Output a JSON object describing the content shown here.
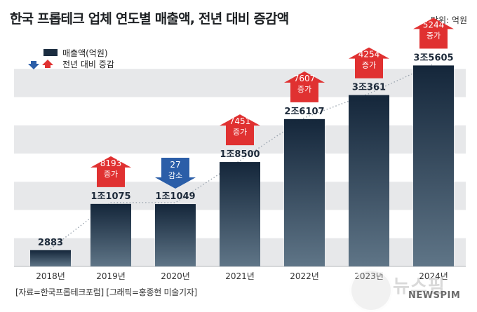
{
  "header": {
    "title": "한국 프롭테크 업체 연도별 매출액, 전년 대비 증감액",
    "unit": "단위: 억원"
  },
  "legend": {
    "sales": "매출액(억원)",
    "change": "전년 대비 증감"
  },
  "footer": {
    "source": "[자료=한국프롭테크포럼] [그래픽=홍종현 미술기자]"
  },
  "watermark": {
    "logo_text": "뉴스핌",
    "sub": "NEWSPIM"
  },
  "colors": {
    "bar_top": "#14263a",
    "bar_bottom": "#5f7587",
    "increase": "#e03131",
    "decrease": "#2b5ea8",
    "band": "#e7e8ea"
  },
  "chart_data": {
    "type": "bar",
    "title": "한국 프롭테크 업체 연도별 매출액, 전년 대비 증감액",
    "ylabel": "매출액(억원)",
    "categories": [
      "2018년",
      "2019년",
      "2020년",
      "2021년",
      "2022년",
      "2023년",
      "2024년"
    ],
    "values": [
      2883,
      11075,
      11049,
      18500,
      26107,
      30361,
      35605
    ],
    "value_labels": [
      "2883",
      "1조1075",
      "1조1049",
      "1조8500",
      "2조6107",
      "3조361",
      "3조5605"
    ],
    "changes": [
      null,
      8193,
      -27,
      7451,
      7607,
      4254,
      5244
    ],
    "change_labels": [
      null,
      "8193",
      "27",
      "7451",
      "7607",
      "4254",
      "5244"
    ],
    "change_words": [
      null,
      "증가",
      "감소",
      "증가",
      "증가",
      "증가",
      "증가"
    ],
    "ylim": [
      0,
      40000
    ],
    "trend_line": "dotted",
    "legend_position": "top-left"
  }
}
